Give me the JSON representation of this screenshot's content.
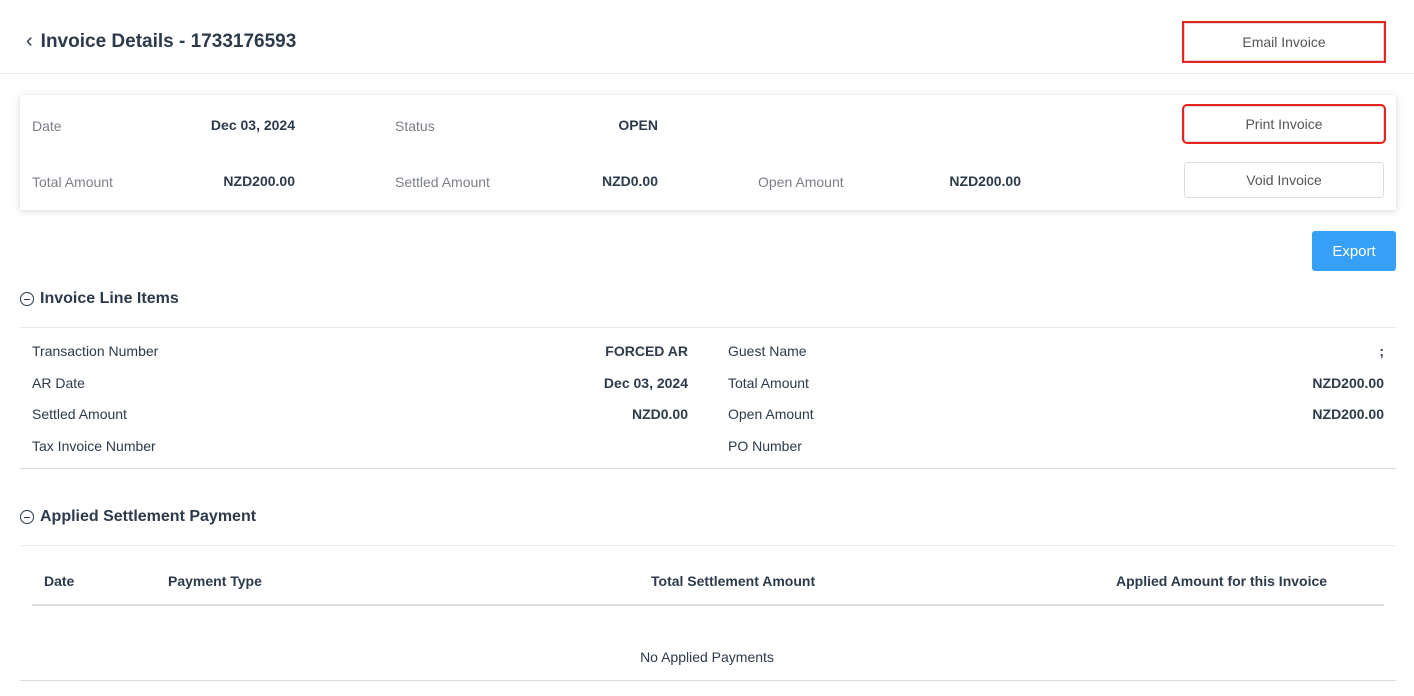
{
  "header": {
    "title": "Invoice Details - 1733176593",
    "email_button": "Email Invoice"
  },
  "summary": {
    "date_label": "Date",
    "date_value": "Dec 03, 2024",
    "status_label": "Status",
    "status_value": "OPEN",
    "total_label": "Total Amount",
    "total_value": "NZD200.00",
    "settled_label": "Settled Amount",
    "settled_value": "NZD0.00",
    "open_label": "Open Amount",
    "open_value": "NZD200.00",
    "print_button": "Print Invoice",
    "void_button": "Void Invoice"
  },
  "export_button": "Export",
  "line_items": {
    "title": "Invoice Line Items",
    "left": [
      {
        "label": "Transaction Number",
        "value": "FORCED AR"
      },
      {
        "label": "AR Date",
        "value": "Dec 03, 2024"
      },
      {
        "label": "Settled Amount",
        "value": "NZD0.00"
      },
      {
        "label": "Tax Invoice Number",
        "value": ""
      }
    ],
    "right": [
      {
        "label": "Guest Name",
        "value": ";"
      },
      {
        "label": "Total Amount",
        "value": "NZD200.00"
      },
      {
        "label": "Open Amount",
        "value": "NZD200.00"
      },
      {
        "label": "PO Number",
        "value": ""
      }
    ]
  },
  "settlement": {
    "title": "Applied Settlement Payment",
    "columns": [
      "Date",
      "Payment Type",
      "Total Settlement Amount",
      "Applied Amount for this Invoice"
    ],
    "empty": "No Applied Payments"
  },
  "colors": {
    "accent": "#35a0f5",
    "annotation": "#e8231e"
  }
}
